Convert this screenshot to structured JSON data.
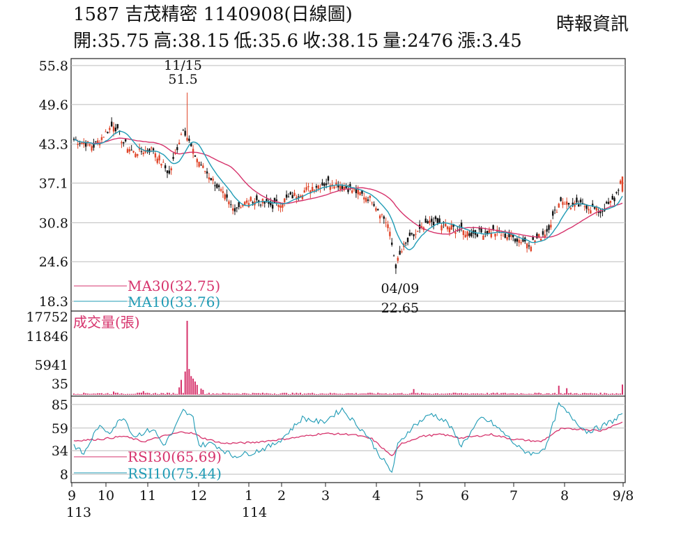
{
  "header": {
    "title": "1587  吉茂精密 1140908(日線圖)",
    "source": "時報資訊",
    "ohlc": [
      {
        "label": "開",
        "value": "35.75"
      },
      {
        "label": "高",
        "value": "38.15"
      },
      {
        "label": "低",
        "value": "35.6"
      },
      {
        "label": "收",
        "value": "38.15"
      },
      {
        "label": "量",
        "value": "2476"
      },
      {
        "label": "漲",
        "value": "3.45"
      }
    ]
  },
  "colors": {
    "up": "#e0462a",
    "down": "#111111",
    "ma30": "#d6336c",
    "ma10": "#1f9bb5",
    "volume": "#d6336c",
    "rsi30": "#d6336c",
    "rsi10": "#1f9bb5",
    "grid": "#bbbbbb"
  },
  "chart_data": [
    {
      "type": "candlestick",
      "title": "1587  吉茂精密 1140908(日線圖)",
      "ylim": [
        18.3,
        55.8
      ],
      "y_ticks": [
        "55.8",
        "49.6",
        "43.3",
        "37.1",
        "30.8",
        "24.6",
        "18.3"
      ],
      "x_ticks": [
        "9",
        "10",
        "11",
        "12",
        "1",
        "2",
        "3",
        "4",
        "5",
        "6",
        "7",
        "8",
        "9/8"
      ],
      "x_ticks_sub": [
        {
          "at": "9",
          "text": "113"
        },
        {
          "at": "1",
          "text": "114"
        }
      ],
      "annotations": [
        {
          "date": "11/15",
          "label": "11/15",
          "value": "51.5"
        },
        {
          "date": "04/09",
          "label": "04/09",
          "value": "22.65"
        }
      ],
      "series": [
        {
          "name": "MA30(32.75)",
          "last": 32.75
        },
        {
          "name": "MA10(33.76)",
          "last": 33.76
        }
      ],
      "close_path": [
        [
          0,
          44.0
        ],
        [
          10,
          43.0
        ],
        [
          20,
          46.5
        ],
        [
          25,
          43.5
        ],
        [
          30,
          42.0
        ],
        [
          40,
          42.5
        ],
        [
          48,
          38.5
        ],
        [
          55,
          46.0
        ],
        [
          60,
          42.0
        ],
        [
          65,
          39.5
        ],
        [
          70,
          37.5
        ],
        [
          80,
          33.0
        ],
        [
          90,
          34.5
        ],
        [
          95,
          34.0
        ],
        [
          100,
          33.5
        ],
        [
          110,
          35.0
        ],
        [
          120,
          36.5
        ],
        [
          130,
          37.3
        ],
        [
          140,
          36.0
        ],
        [
          150,
          34.5
        ],
        [
          158,
          30.5
        ],
        [
          162,
          24.0
        ],
        [
          166,
          27.0
        ],
        [
          170,
          28.5
        ],
        [
          180,
          31.0
        ],
        [
          190,
          30.0
        ],
        [
          200,
          29.0
        ],
        [
          210,
          29.5
        ],
        [
          220,
          28.5
        ],
        [
          230,
          27.5
        ],
        [
          238,
          29.5
        ],
        [
          245,
          34.5
        ],
        [
          250,
          33.5
        ],
        [
          258,
          33.5
        ],
        [
          265,
          32.5
        ],
        [
          272,
          34.5
        ],
        [
          276,
          38.15
        ]
      ]
    },
    {
      "type": "bar",
      "title": "成交量(張)",
      "ylim": [
        35,
        17752
      ],
      "y_ticks": [
        "17752",
        "11846",
        "5941",
        "35"
      ],
      "spikes": [
        [
          57,
          17752
        ],
        [
          58,
          6200
        ],
        [
          56,
          5600
        ],
        [
          54,
          3600
        ],
        [
          59,
          4500
        ],
        [
          60,
          3900
        ],
        [
          61,
          3200
        ],
        [
          53,
          1800
        ],
        [
          62,
          2400
        ],
        [
          64,
          1500
        ],
        [
          65,
          1200
        ],
        [
          244,
          2200
        ],
        [
          248,
          1600
        ],
        [
          276,
          2476
        ],
        [
          171,
          1400
        ],
        [
          35,
          900
        ],
        [
          20,
          800
        ]
      ],
      "base": 350
    },
    {
      "type": "line",
      "title": "RSI",
      "ylim": [
        8,
        85
      ],
      "y_ticks": [
        "85",
        "59",
        "34",
        "8"
      ],
      "series": [
        {
          "name": "RSI30(65.69)",
          "last": 65.69,
          "points": [
            [
              0,
              45
            ],
            [
              15,
              47
            ],
            [
              25,
              50
            ],
            [
              35,
              44
            ],
            [
              45,
              50
            ],
            [
              55,
              55
            ],
            [
              60,
              53
            ],
            [
              65,
              48
            ],
            [
              75,
              42
            ],
            [
              90,
              43
            ],
            [
              110,
              48
            ],
            [
              125,
              53
            ],
            [
              140,
              52
            ],
            [
              150,
              47
            ],
            [
              160,
              28
            ],
            [
              165,
              42
            ],
            [
              175,
              50
            ],
            [
              185,
              52
            ],
            [
              195,
              48
            ],
            [
              210,
              52
            ],
            [
              220,
              47
            ],
            [
              235,
              44
            ],
            [
              245,
              58
            ],
            [
              255,
              58
            ],
            [
              265,
              56
            ],
            [
              276,
              65.69
            ]
          ]
        },
        {
          "name": "RSI10(75.44)",
          "last": 75.44,
          "points": [
            [
              0,
              40
            ],
            [
              5,
              30
            ],
            [
              12,
              60
            ],
            [
              18,
              55
            ],
            [
              25,
              72
            ],
            [
              30,
              50
            ],
            [
              40,
              58
            ],
            [
              45,
              40
            ],
            [
              50,
              55
            ],
            [
              55,
              78
            ],
            [
              60,
              70
            ],
            [
              63,
              40
            ],
            [
              70,
              42
            ],
            [
              80,
              28
            ],
            [
              90,
              32
            ],
            [
              100,
              40
            ],
            [
              105,
              48
            ],
            [
              115,
              70
            ],
            [
              125,
              65
            ],
            [
              135,
              80
            ],
            [
              140,
              68
            ],
            [
              148,
              50
            ],
            [
              152,
              35
            ],
            [
              160,
              10
            ],
            [
              163,
              40
            ],
            [
              170,
              60
            ],
            [
              180,
              75
            ],
            [
              188,
              65
            ],
            [
              195,
              40
            ],
            [
              205,
              70
            ],
            [
              210,
              65
            ],
            [
              218,
              50
            ],
            [
              225,
              35
            ],
            [
              232,
              30
            ],
            [
              238,
              40
            ],
            [
              244,
              85
            ],
            [
              250,
              72
            ],
            [
              258,
              55
            ],
            [
              265,
              60
            ],
            [
              272,
              68
            ],
            [
              276,
              75.44
            ]
          ]
        }
      ]
    }
  ]
}
